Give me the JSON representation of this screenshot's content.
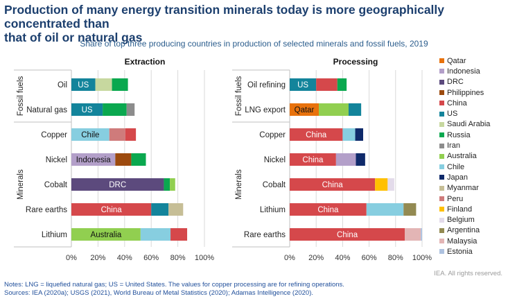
{
  "header": {
    "title_line1": "Production of many energy transition minerals today is more geographically concentrated than",
    "title_line2": "that of oil or natural gas",
    "subtitle": "Share of top three producing countries in production of selected minerals and fossil fuels, 2019"
  },
  "footer": {
    "rights": "IEA. All rights reserved.",
    "notes": "Notes: LNG = liquefied natural gas; US = United States. The values for copper processing are for refining operations.",
    "sources": "Sources: IEA (2020a); USGS (2021), World Bureau of Metal Statistics (2020); Adamas Intelligence (2020)."
  },
  "colors": {
    "Qatar": "#e8720c",
    "Indonesia": "#b39fc9",
    "DRC": "#5c4a7d",
    "Philippines": "#9c4a0e",
    "China": "#d5484b",
    "US": "#13849b",
    "Saudi Arabia": "#c7d89f",
    "Russia": "#0aa84f",
    "Iran": "#8c8c8c",
    "Australia": "#91cf50",
    "Chile": "#87cee0",
    "Japan": "#0f2a6a",
    "Myanmar": "#c6be96",
    "Peru": "#cf7b7b",
    "Finland": "#ffc000",
    "Belgium": "#e3dbea",
    "Argentina": "#938a52",
    "Malaysia": "#e3b5b5",
    "Estonia": "#aec2e0"
  },
  "chart_data": [
    {
      "type": "bar",
      "orientation": "horizontal",
      "stacked": true,
      "title": "Extraction",
      "xlabel": "",
      "xlim": [
        0,
        100
      ],
      "xticks": [
        "0%",
        "20%",
        "40%",
        "60%",
        "80%",
        "100%"
      ],
      "grid": true,
      "groups": [
        {
          "name": "Fossil fuels",
          "categories": [
            "Oil",
            "Natural gas"
          ]
        },
        {
          "name": "Minerals",
          "categories": [
            "Copper",
            "Nickel",
            "Cobalt",
            "Rare earths",
            "Lithium"
          ]
        }
      ],
      "rows": [
        {
          "category": "Oil",
          "segments": [
            {
              "country": "US",
              "value": 18,
              "label": "US"
            },
            {
              "country": "Saudi Arabia",
              "value": 12.5
            },
            {
              "country": "Russia",
              "value": 12
            }
          ]
        },
        {
          "category": "Natural gas",
          "segments": [
            {
              "country": "US",
              "value": 23.5,
              "label": "US"
            },
            {
              "country": "Russia",
              "value": 18
            },
            {
              "country": "Iran",
              "value": 6
            }
          ]
        },
        {
          "category": "Copper",
          "segments": [
            {
              "country": "Chile",
              "value": 28.5,
              "label": "Chile"
            },
            {
              "country": "Peru",
              "value": 12
            },
            {
              "country": "China",
              "value": 8
            }
          ]
        },
        {
          "category": "Nickel",
          "segments": [
            {
              "country": "Indonesia",
              "value": 33,
              "label": "Indonesia"
            },
            {
              "country": "Philippines",
              "value": 12
            },
            {
              "country": "Russia",
              "value": 11
            }
          ]
        },
        {
          "category": "Cobalt",
          "segments": [
            {
              "country": "DRC",
              "value": 69.5,
              "label": "DRC"
            },
            {
              "country": "Russia",
              "value": 4.5
            },
            {
              "country": "Australia",
              "value": 4
            }
          ]
        },
        {
          "category": "Rare earths",
          "segments": [
            {
              "country": "China",
              "value": 60,
              "label": "China"
            },
            {
              "country": "US",
              "value": 13
            },
            {
              "country": "Myanmar",
              "value": 11
            }
          ]
        },
        {
          "category": "Lithium",
          "segments": [
            {
              "country": "Australia",
              "value": 52,
              "label": "Australia"
            },
            {
              "country": "Chile",
              "value": 22.5
            },
            {
              "country": "China",
              "value": 12.5
            }
          ]
        }
      ]
    },
    {
      "type": "bar",
      "orientation": "horizontal",
      "stacked": true,
      "title": "Processing",
      "xlabel": "",
      "xlim": [
        0,
        100
      ],
      "xticks": [
        "0%",
        "20%",
        "40%",
        "60%",
        "80%",
        "100%"
      ],
      "grid": true,
      "groups": [
        {
          "name": "Fossil fuels",
          "categories": [
            "Oil refining",
            "LNG export"
          ]
        },
        {
          "name": "Minerals",
          "categories": [
            "Copper",
            "Nickel",
            "Cobalt",
            "Lithium",
            "Rare earths"
          ]
        }
      ],
      "rows": [
        {
          "category": "Oil refining",
          "segments": [
            {
              "country": "US",
              "value": 20,
              "label": "US"
            },
            {
              "country": "China",
              "value": 16
            },
            {
              "country": "Russia",
              "value": 7
            }
          ]
        },
        {
          "category": "LNG export",
          "segments": [
            {
              "country": "Qatar",
              "value": 22,
              "label": "Qatar"
            },
            {
              "country": "Australia",
              "value": 22.5
            },
            {
              "country": "US",
              "value": 9.5
            }
          ]
        },
        {
          "category": "Copper",
          "segments": [
            {
              "country": "China",
              "value": 40,
              "label": "China"
            },
            {
              "country": "Chile",
              "value": 9.5
            },
            {
              "country": "Japan",
              "value": 6
            }
          ]
        },
        {
          "category": "Nickel",
          "segments": [
            {
              "country": "China",
              "value": 35,
              "label": "China"
            },
            {
              "country": "Indonesia",
              "value": 15
            },
            {
              "country": "Japan",
              "value": 7
            }
          ]
        },
        {
          "category": "Cobalt",
          "segments": [
            {
              "country": "China",
              "value": 64.5,
              "label": "China"
            },
            {
              "country": "Finland",
              "value": 9.5
            },
            {
              "country": "Belgium",
              "value": 5
            }
          ]
        },
        {
          "category": "Lithium",
          "segments": [
            {
              "country": "China",
              "value": 58,
              "label": "China"
            },
            {
              "country": "Chile",
              "value": 28
            },
            {
              "country": "Argentina",
              "value": 9.5
            }
          ]
        },
        {
          "category": "Rare earths",
          "segments": [
            {
              "country": "China",
              "value": 87,
              "label": "China"
            },
            {
              "country": "Malaysia",
              "value": 12
            },
            {
              "country": "Estonia",
              "value": 1
            }
          ]
        }
      ]
    }
  ],
  "legend": [
    "Qatar",
    "Indonesia",
    "DRC",
    "Philippines",
    "China",
    "US",
    "Saudi Arabia",
    "Russia",
    "Iran",
    "Australia",
    "Chile",
    "Japan",
    "Myanmar",
    "Peru",
    "Finland",
    "Belgium",
    "Argentina",
    "Malaysia",
    "Estonia"
  ]
}
